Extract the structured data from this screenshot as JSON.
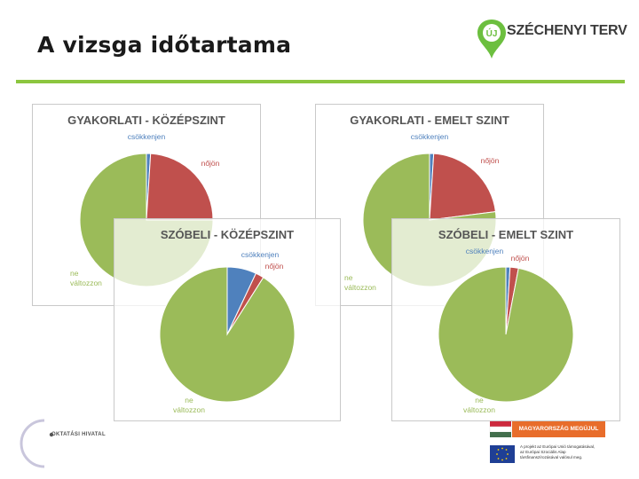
{
  "slide": {
    "title": "A vizsga időtartama"
  },
  "logo": {
    "mark": "ÚJ",
    "text": "SZÉCHENYI TERV"
  },
  "footer": {
    "left_text": "OKTATÁSI HIVATAL",
    "banner_text": "MAGYARORSZÁG MEGÚJUL",
    "eu_text_lines": [
      "A projekt az Európai Unió támogatásával,",
      "az Európai Szociális Alap",
      "társfinanszírozásával valósul meg."
    ]
  },
  "colors": {
    "blue": "#4f81bd",
    "red": "#c0504d",
    "green": "#9bbb59",
    "accent_rule": "#8cc63f"
  },
  "chart_data": [
    {
      "type": "pie",
      "title": "GYAKORLATI - KÖZÉPSZINT",
      "categories": [
        "csökkenjen",
        "nőjön",
        "ne változzon"
      ],
      "values": [
        1,
        24,
        75
      ],
      "colors": [
        "#4f81bd",
        "#c0504d",
        "#9bbb59"
      ]
    },
    {
      "type": "pie",
      "title": "GYAKORLATI - EMELT SZINT",
      "categories": [
        "csökkenjen",
        "nőjön",
        "ne változzon"
      ],
      "values": [
        1,
        22,
        77
      ],
      "colors": [
        "#4f81bd",
        "#c0504d",
        "#9bbb59"
      ]
    },
    {
      "type": "pie",
      "title": "SZÓBELI - KÖZÉPSZINT",
      "categories": [
        "csökkenjen",
        "nőjön",
        "ne változzon"
      ],
      "values": [
        7,
        2,
        91
      ],
      "colors": [
        "#4f81bd",
        "#c0504d",
        "#9bbb59"
      ]
    },
    {
      "type": "pie",
      "title": "SZÓBELI - EMELT SZINT",
      "categories": [
        "csökkenjen",
        "nőjön",
        "ne változzon"
      ],
      "values": [
        1,
        2,
        97
      ],
      "colors": [
        "#4f81bd",
        "#c0504d",
        "#9bbb59"
      ]
    }
  ]
}
